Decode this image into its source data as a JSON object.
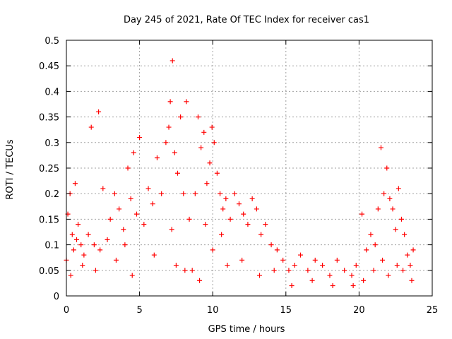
{
  "chart_data": {
    "type": "scatter",
    "title": "Day 245 of 2021, Rate Of TEC Index for receiver cas1",
    "xlabel": "GPS time / hours",
    "ylabel": "ROTI / TECUs",
    "xlim": [
      0,
      25
    ],
    "ylim": [
      0,
      0.5
    ],
    "x_ticks": [
      0,
      5,
      10,
      15,
      20,
      25
    ],
    "x_tick_labels": [
      "0",
      "5",
      "10",
      "15",
      "20",
      "25"
    ],
    "y_ticks": [
      0,
      0.05,
      0.1,
      0.15,
      0.2,
      0.25,
      0.3,
      0.35,
      0.4,
      0.45,
      0.5
    ],
    "y_tick_labels": [
      "0",
      "0.05",
      "0.1",
      "0.15",
      "0.2",
      "0.25",
      "0.3",
      "0.35",
      "0.4",
      "0.45",
      "0.5"
    ],
    "grid": true,
    "marker": "+",
    "marker_color": "#ff0000",
    "x": [
      0.0,
      0.1,
      0.25,
      0.4,
      0.5,
      0.6,
      0.8,
      1.0,
      1.2,
      1.5,
      1.7,
      1.9,
      2.2,
      2.3,
      2.5,
      2.8,
      3.0,
      3.3,
      3.6,
      3.9,
      4.2,
      4.4,
      4.6,
      4.8,
      5.0,
      5.3,
      5.6,
      5.9,
      6.2,
      6.5,
      6.8,
      7.0,
      7.1,
      7.25,
      7.4,
      7.6,
      7.8,
      8.0,
      8.2,
      8.4,
      8.6,
      8.8,
      9.0,
      9.2,
      9.4,
      9.6,
      9.8,
      9.95,
      10.1,
      10.3,
      10.5,
      10.7,
      10.9,
      11.2,
      11.5,
      11.8,
      12.1,
      12.4,
      12.7,
      13.0,
      13.3,
      13.6,
      14.0,
      14.4,
      14.8,
      15.2,
      15.6,
      16.0,
      16.5,
      17.0,
      17.5,
      18.0,
      18.5,
      19.0,
      19.5,
      19.8,
      20.2,
      20.5,
      20.8,
      21.1,
      21.3,
      21.5,
      21.7,
      21.9,
      22.1,
      22.3,
      22.5,
      22.7,
      22.9,
      23.1,
      23.3,
      23.5,
      23.7,
      0.3,
      1.1,
      2.0,
      3.4,
      4.5,
      6.0,
      7.5,
      8.1,
      9.1,
      10.0,
      11.0,
      12.0,
      13.2,
      14.2,
      15.4,
      16.8,
      18.2,
      19.6,
      20.3,
      21.0,
      22.0,
      22.6,
      23.0,
      23.6,
      0.7,
      4.0,
      7.2,
      9.5,
      10.6,
      21.6
    ],
    "y": [
      0.07,
      0.16,
      0.2,
      0.12,
      0.09,
      0.22,
      0.14,
      0.1,
      0.08,
      0.12,
      0.33,
      0.1,
      0.36,
      0.09,
      0.21,
      0.11,
      0.15,
      0.2,
      0.17,
      0.13,
      0.25,
      0.19,
      0.28,
      0.16,
      0.31,
      0.14,
      0.21,
      0.18,
      0.27,
      0.2,
      0.3,
      0.33,
      0.38,
      0.46,
      0.28,
      0.24,
      0.35,
      0.2,
      0.38,
      0.15,
      0.05,
      0.2,
      0.35,
      0.29,
      0.32,
      0.22,
      0.26,
      0.33,
      0.3,
      0.24,
      0.2,
      0.17,
      0.19,
      0.15,
      0.2,
      0.18,
      0.16,
      0.14,
      0.19,
      0.17,
      0.12,
      0.14,
      0.1,
      0.09,
      0.07,
      0.05,
      0.06,
      0.08,
      0.05,
      0.07,
      0.06,
      0.04,
      0.07,
      0.05,
      0.04,
      0.06,
      0.16,
      0.09,
      0.12,
      0.1,
      0.17,
      0.29,
      0.2,
      0.25,
      0.19,
      0.17,
      0.13,
      0.21,
      0.15,
      0.12,
      0.08,
      0.06,
      0.09,
      0.04,
      0.06,
      0.05,
      0.07,
      0.04,
      0.08,
      0.06,
      0.05,
      0.03,
      0.09,
      0.06,
      0.07,
      0.04,
      0.05,
      0.02,
      0.03,
      0.02,
      0.02,
      0.03,
      0.05,
      0.04,
      0.06,
      0.05,
      0.03,
      0.11,
      0.1,
      0.13,
      0.14,
      0.12,
      0.07
    ]
  }
}
